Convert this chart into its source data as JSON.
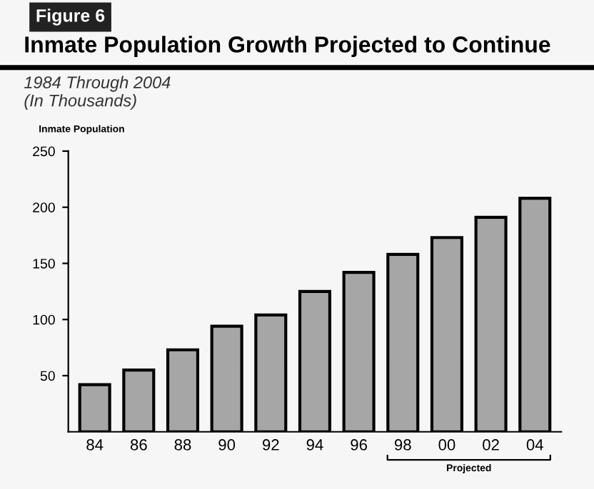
{
  "chart_data": {
    "type": "bar",
    "title": "Inmate Population Growth Projected to Continue",
    "subtitle": "1984 Through 2004\n(In Thousands)",
    "ylabel": "Inmate Population",
    "annotations": [
      "Figure 6",
      "Projected"
    ],
    "categories": [
      "84",
      "86",
      "88",
      "90",
      "92",
      "94",
      "96",
      "98",
      "00",
      "02",
      "04"
    ],
    "values": [
      42,
      55,
      73,
      94,
      104,
      125,
      142,
      158,
      173,
      191,
      208
    ],
    "color": "#a6a6a6",
    "ylim": [
      0,
      250
    ],
    "yticks": [
      50,
      100,
      150,
      200,
      250
    ],
    "grid": false,
    "legend": false
  }
}
